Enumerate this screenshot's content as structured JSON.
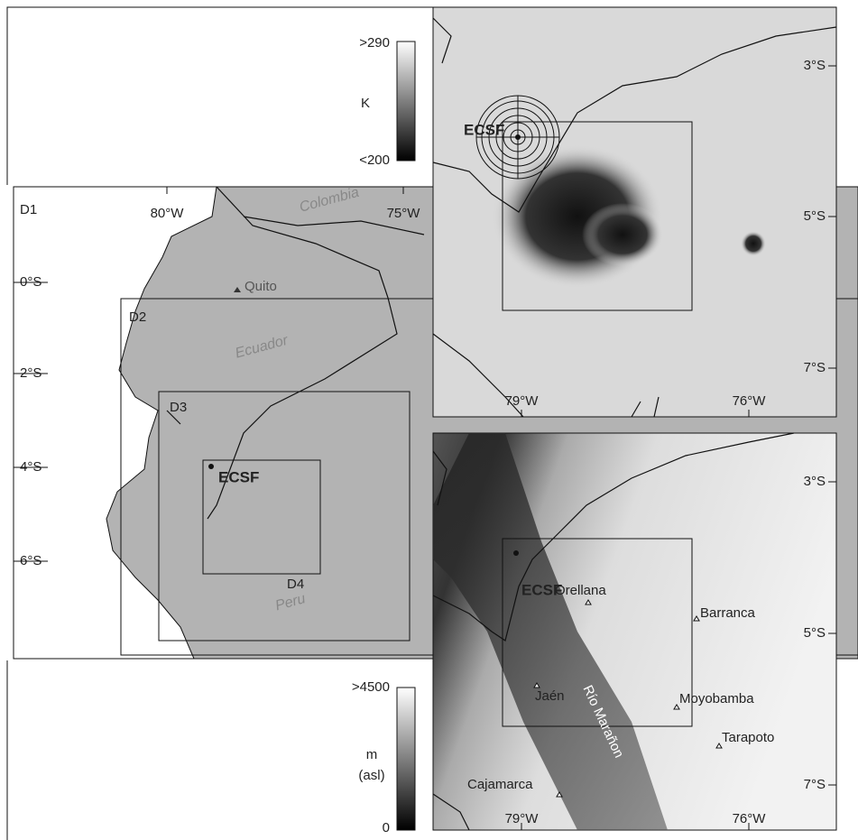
{
  "left_map": {
    "domains": [
      "D1",
      "D2",
      "D3",
      "D4"
    ],
    "lon_labels": [
      "80°W",
      "75°W"
    ],
    "lat_labels": [
      "0°S",
      "2°S",
      "4°S",
      "6°S"
    ],
    "countries": [
      "Colombia",
      "Ecuador",
      "Peru"
    ],
    "city": "Quito",
    "site": "ECSF"
  },
  "temperature_colorbar": {
    "max_label": ">290",
    "unit": "K",
    "min_label": "<200"
  },
  "satellite_map": {
    "site": "ECSF",
    "lat_labels": [
      "3°S",
      "5°S",
      "7°S"
    ],
    "lon_labels": [
      "79°W",
      "76°W"
    ]
  },
  "elevation_colorbar": {
    "max_label": ">4500",
    "unit": "m",
    "unit_note": "(asl)",
    "min_label": "0"
  },
  "elevation_map": {
    "site": "ECSF",
    "towns": [
      "Orellana",
      "Barranca",
      "Jaén",
      "Moyobamba",
      "Tarapoto",
      "Cajamarca"
    ],
    "river": "Río Marañon",
    "lat_labels": [
      "3°S",
      "5°S",
      "7°S"
    ],
    "lon_labels": [
      "79°W",
      "76°W"
    ]
  }
}
